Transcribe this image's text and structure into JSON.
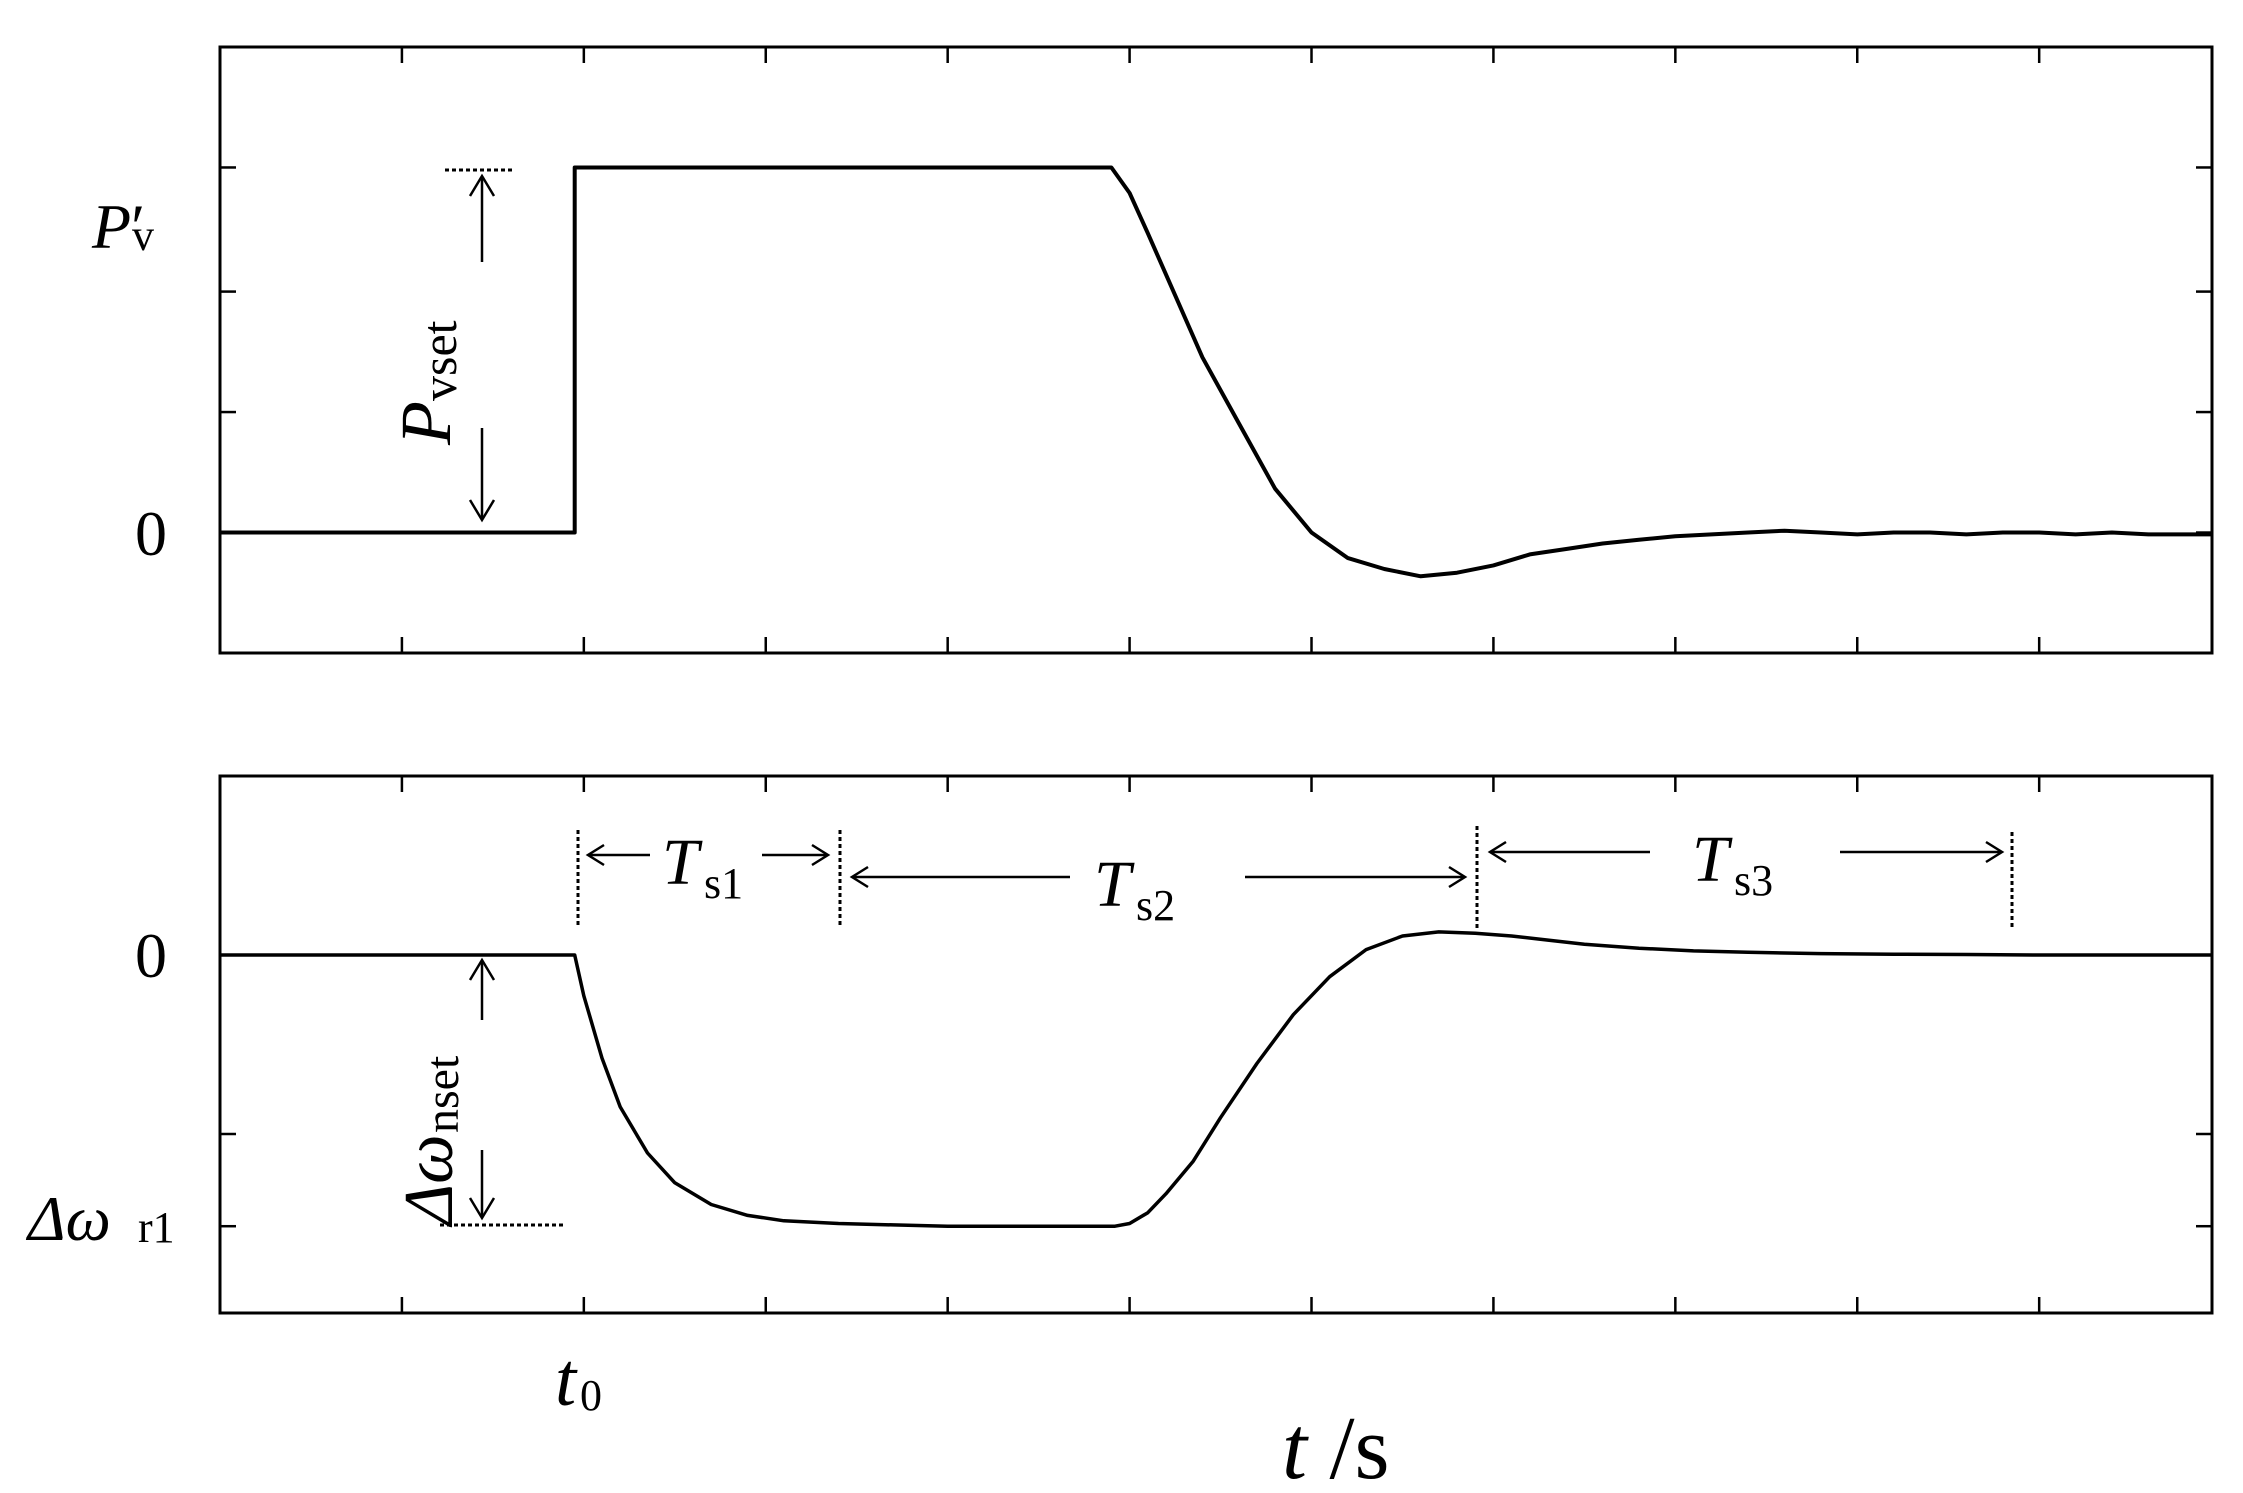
{
  "chart_data": [
    {
      "type": "line",
      "panel": "top",
      "ylabel": {
        "main": "P",
        "prime": "′",
        "sub": "v"
      },
      "y_tick_labels": [
        "0"
      ],
      "annotation": {
        "main": "P",
        "sub": "vset"
      },
      "x": [
        0,
        1.95,
        1.95,
        4.9,
        5.0,
        5.1,
        5.25,
        5.4,
        5.6,
        5.8,
        6.0,
        6.2,
        6.4,
        6.6,
        6.8,
        7.0,
        7.2,
        7.4,
        7.6,
        7.8,
        8.0,
        8.2,
        8.4,
        8.6,
        8.8,
        9.0,
        9.2,
        9.4,
        9.6,
        9.8,
        10.0,
        10.2,
        10.4,
        10.6,
        10.8,
        10.95
      ],
      "y": [
        0,
        0,
        1,
        1,
        0.93,
        0.82,
        0.65,
        0.48,
        0.3,
        0.12,
        0.0,
        -0.07,
        -0.1,
        -0.12,
        -0.11,
        -0.09,
        -0.06,
        -0.045,
        -0.03,
        -0.02,
        -0.01,
        -0.005,
        0.0,
        0.005,
        0.0,
        -0.005,
        0.0,
        0.0,
        -0.005,
        0.0,
        0.0,
        -0.005,
        0.0,
        -0.005,
        -0.005,
        -0.005
      ],
      "xlim": [
        0,
        10.95
      ],
      "ylim": [
        -0.33,
        1.33
      ],
      "grid": false
    },
    {
      "type": "line",
      "panel": "bottom",
      "y_tick_labels": [
        "0"
      ],
      "ylabel": {
        "main": "Δω",
        "sub": "r1"
      },
      "annotation": {
        "main": "Δω",
        "sub": "nset"
      },
      "x": [
        0,
        1.95,
        2.0,
        2.1,
        2.2,
        2.35,
        2.5,
        2.7,
        2.9,
        3.1,
        3.4,
        3.7,
        4.0,
        4.5,
        4.92,
        5.0,
        5.1,
        5.2,
        5.35,
        5.5,
        5.7,
        5.9,
        6.1,
        6.3,
        6.5,
        6.7,
        6.9,
        7.1,
        7.3,
        7.5,
        7.8,
        8.1,
        8.4,
        8.8,
        9.2,
        9.6,
        10.0,
        10.5,
        10.95
      ],
      "y": [
        0,
        0,
        -0.15,
        -0.38,
        -0.56,
        -0.73,
        -0.84,
        -0.92,
        -0.96,
        -0.98,
        -0.99,
        -0.995,
        -1.0,
        -1.0,
        -1.0,
        -0.99,
        -0.95,
        -0.88,
        -0.76,
        -0.6,
        -0.4,
        -0.22,
        -0.08,
        0.02,
        0.07,
        0.085,
        0.08,
        0.07,
        0.055,
        0.04,
        0.025,
        0.015,
        0.01,
        0.005,
        0.003,
        0.002,
        0.0,
        0.0,
        0.0
      ],
      "xlim": [
        0,
        10.95
      ],
      "ylim": [
        -1.32,
        0.66
      ],
      "grid": false,
      "intervals": [
        {
          "main": "T",
          "sub": "s1",
          "from": 1.95,
          "to": 3.4
        },
        {
          "main": "T",
          "sub": "s2",
          "from": 3.4,
          "to": 6.85
        },
        {
          "main": "T",
          "sub": "s3",
          "from": 6.85,
          "to": 9.8
        }
      ]
    }
  ],
  "x_axis": {
    "label_main": "t",
    "label_unit": " /s",
    "tick_label": {
      "main": "t",
      "sub": "0"
    }
  },
  "colors": {
    "line": "#000000",
    "axes": "#000000",
    "background": "#ffffff"
  }
}
